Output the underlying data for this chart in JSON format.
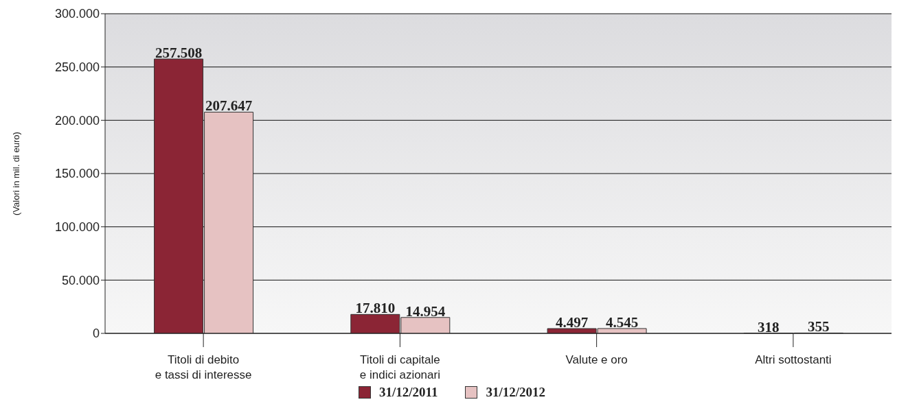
{
  "chart_data": {
    "type": "bar",
    "ylabel": "(Valori in mil. di euro)",
    "categories": [
      "Titoli di debito\ne tassi di interesse",
      "Titoli di capitale\ne indici azionari",
      "Valute e oro",
      "Altri sottostanti"
    ],
    "series": [
      {
        "name": "31/12/2011",
        "color": "#8b2535",
        "values": [
          257508,
          17810,
          4497,
          318
        ],
        "value_labels": [
          "257.508",
          "17.810",
          "4.497",
          "318"
        ]
      },
      {
        "name": "31/12/2012",
        "color": "#e6c2c2",
        "values": [
          207647,
          14954,
          4545,
          355
        ],
        "value_labels": [
          "207.647",
          "14.954",
          "4.545",
          "355"
        ]
      }
    ],
    "ylim": [
      0,
      300000
    ],
    "yticks": [
      {
        "value": 0,
        "label": "0"
      },
      {
        "value": 50000,
        "label": "50.000"
      },
      {
        "value": 100000,
        "label": "100.000"
      },
      {
        "value": 150000,
        "label": "150.000"
      },
      {
        "value": 200000,
        "label": "200.000"
      },
      {
        "value": 250000,
        "label": "250.000"
      },
      {
        "value": 300000,
        "label": "300.000"
      }
    ],
    "grid": "y",
    "legend": "bottom"
  }
}
